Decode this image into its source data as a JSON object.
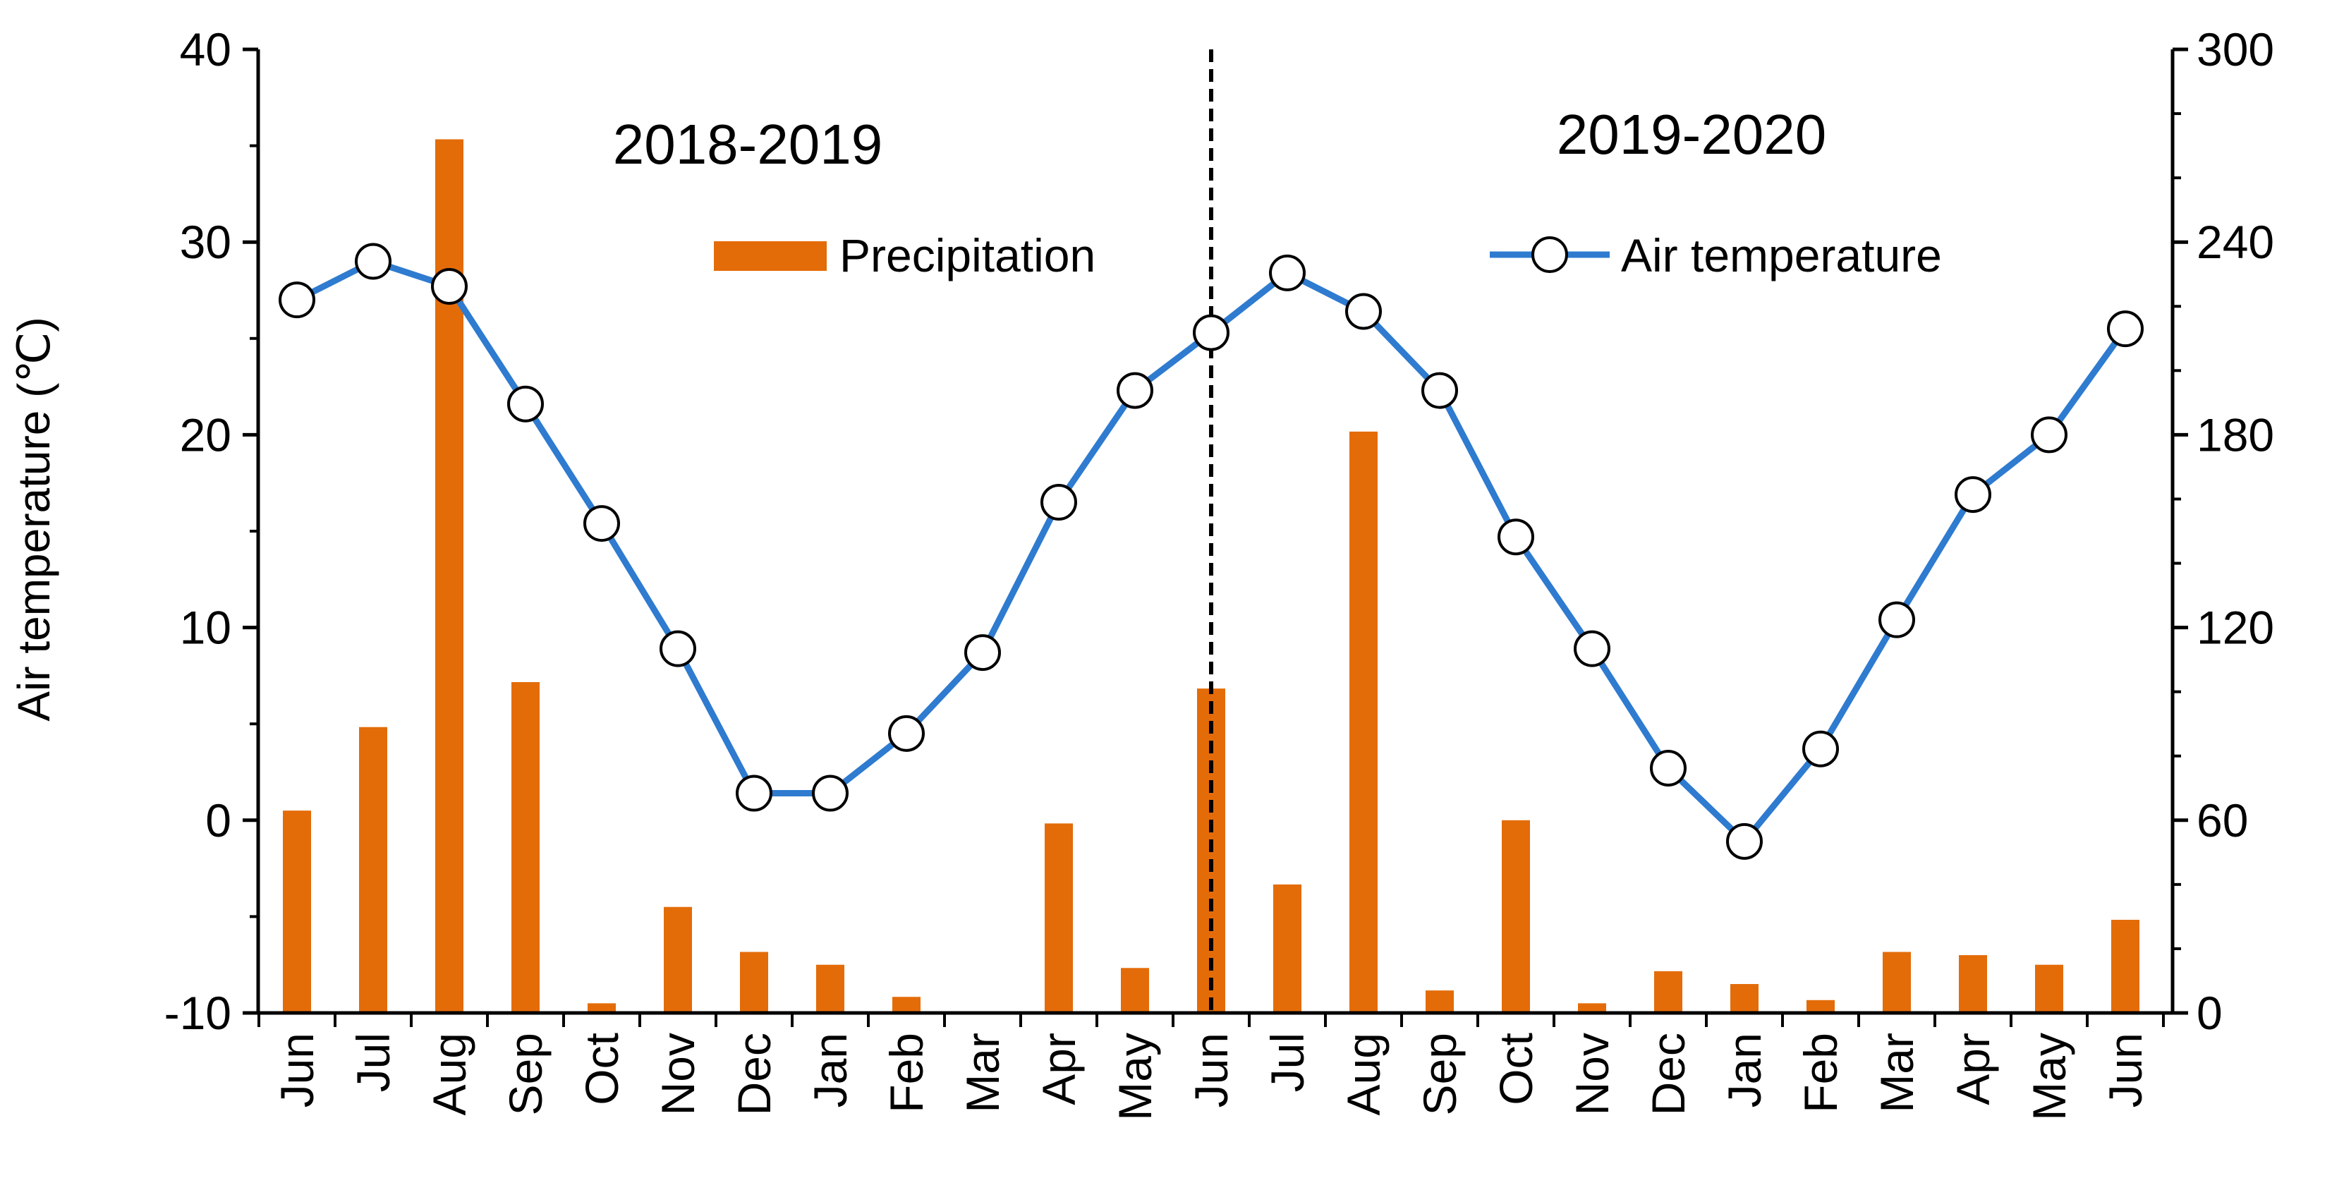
{
  "chart_data": {
    "type": "bar+line",
    "categories": [
      "Jun",
      "Jul",
      "Aug",
      "Sep",
      "Oct",
      "Nov",
      "Dec",
      "Jan",
      "Feb",
      "Mar",
      "Apr",
      "May",
      "Jun",
      "Jul",
      "Aug",
      "Sep",
      "Oct",
      "Nov",
      "Dec",
      "Jan",
      "Feb",
      "Mar",
      "Apr",
      "May",
      "Jun"
    ],
    "ylabel": "Air temperature (℃)",
    "ylabel_right": "",
    "ylim": [
      -10,
      40
    ],
    "yticks": [
      -10,
      0,
      10,
      20,
      30,
      40
    ],
    "y2lim": [
      0,
      300
    ],
    "y2ticks": [
      0,
      60,
      120,
      180,
      240,
      300
    ],
    "period_labels": [
      "2018-2019",
      "2019-2020"
    ],
    "divider_category_index": 12,
    "series": [
      {
        "name": "Precipitation",
        "type": "bar",
        "axis": "right",
        "color": "#e36c09",
        "values": [
          63,
          89,
          272,
          103,
          3,
          33,
          19,
          15,
          5,
          0,
          59,
          14,
          101,
          40,
          181,
          7,
          60,
          3,
          13,
          9,
          4,
          19,
          18,
          15,
          29
        ]
      },
      {
        "name": "Air temperature",
        "type": "line",
        "axis": "left",
        "color": "#2e7bd0",
        "values": [
          27.0,
          29.0,
          27.7,
          21.6,
          15.4,
          8.9,
          1.4,
          1.4,
          4.5,
          8.7,
          16.5,
          22.3,
          25.3,
          28.4,
          26.4,
          22.3,
          14.7,
          8.9,
          2.7,
          -1.1,
          3.7,
          10.4,
          16.9,
          20.0,
          25.5
        ]
      }
    ],
    "grid": false,
    "legend": "top, inside plot"
  }
}
